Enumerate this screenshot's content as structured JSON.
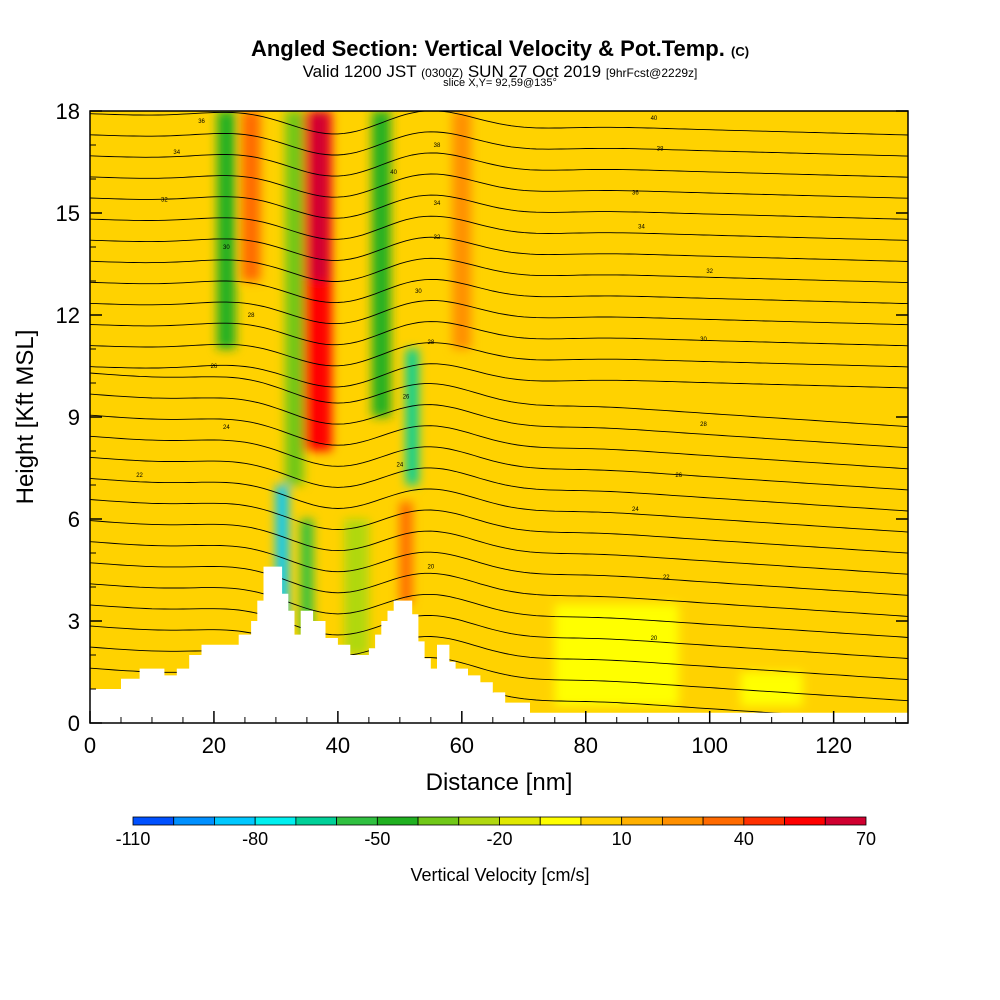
{
  "header": {
    "title_main": "Angled Section: Vertical Velocity & Pot.Temp.",
    "title_unit": "(C)",
    "valid_a": "Valid 1200 JST",
    "valid_z": "(0300Z)",
    "valid_b": "SUN 27 Oct 2019",
    "forecast": "[9hrFcst@2229z]",
    "slice": "slice X,Y= 92,59@135°"
  },
  "chart_data": {
    "type": "heatmap",
    "xlabel": "Distance [nm]",
    "ylabel": "Height [Kft MSL]",
    "xlim": [
      0,
      132
    ],
    "ylim": [
      0,
      18
    ],
    "xticks": [
      0,
      20,
      40,
      60,
      80,
      100,
      120
    ],
    "yticks": [
      0,
      3,
      6,
      9,
      12,
      15,
      18
    ],
    "grid": false,
    "colorbar": {
      "label": "Vertical Velocity [cm/s]",
      "min": -110,
      "max": 70,
      "step": 10,
      "tick_values": [
        -110,
        -80,
        -50,
        -20,
        10,
        40,
        70
      ],
      "colors": [
        "#0000ff",
        "#0050ff",
        "#0090ff",
        "#00c8ff",
        "#00f0f0",
        "#00d098",
        "#30c040",
        "#20b020",
        "#70c818",
        "#b0d810",
        "#e0e800",
        "#ffff00",
        "#ffd200",
        "#ffb000",
        "#ff9000",
        "#ff6a00",
        "#ff3000",
        "#ff0000",
        "#d00030",
        "#a00050",
        "#6a0080"
      ]
    },
    "velocity_cells": [
      {
        "x": 36,
        "w": 6,
        "z0": 8,
        "z1": 18,
        "v": 55
      },
      {
        "x": 37,
        "w": 3,
        "z0": 13,
        "z1": 18,
        "v": 65
      },
      {
        "x": 33,
        "w": 3,
        "z0": 7,
        "z1": 18,
        "v": -35
      },
      {
        "x": 31,
        "w": 2,
        "z0": 3,
        "z1": 7,
        "v": -85
      },
      {
        "x": 35,
        "w": 2,
        "z0": 2.5,
        "z1": 6,
        "v": -55
      },
      {
        "x": 22,
        "w": 3,
        "z0": 11,
        "z1": 18,
        "v": -45
      },
      {
        "x": 26,
        "w": 3,
        "z0": 13,
        "z1": 18,
        "v": 35
      },
      {
        "x": 47,
        "w": 3,
        "z0": 9,
        "z1": 18,
        "v": -40
      },
      {
        "x": 52,
        "w": 2,
        "z0": 7,
        "z1": 11,
        "v": -60
      },
      {
        "x": 51,
        "w": 2,
        "z0": 3.5,
        "z1": 6.5,
        "v": 35
      },
      {
        "x": 60,
        "w": 3,
        "z0": 11,
        "z1": 18,
        "v": 25
      },
      {
        "x": 43,
        "w": 4,
        "z0": 2,
        "z1": 6,
        "v": -20
      },
      {
        "x": 85,
        "w": 20,
        "z0": 0.5,
        "z1": 3.5,
        "v": -5
      },
      {
        "x": 110,
        "w": 10,
        "z0": 0.5,
        "z1": 1.5,
        "v": -5
      }
    ],
    "theta_labels": [
      {
        "x": 18,
        "z": 17.7,
        "t": "36"
      },
      {
        "x": 14,
        "z": 16.8,
        "t": "34"
      },
      {
        "x": 12,
        "z": 15.4,
        "t": "32"
      },
      {
        "x": 22,
        "z": 14.0,
        "t": "30"
      },
      {
        "x": 26,
        "z": 12.0,
        "t": "28"
      },
      {
        "x": 20,
        "z": 10.5,
        "t": "26"
      },
      {
        "x": 22,
        "z": 8.7,
        "t": "24"
      },
      {
        "x": 8,
        "z": 7.3,
        "t": "22"
      },
      {
        "x": 56,
        "z": 17.0,
        "t": "38"
      },
      {
        "x": 49,
        "z": 16.2,
        "t": "40"
      },
      {
        "x": 56,
        "z": 15.3,
        "t": "34"
      },
      {
        "x": 56,
        "z": 14.3,
        "t": "32"
      },
      {
        "x": 53,
        "z": 12.7,
        "t": "30"
      },
      {
        "x": 55,
        "z": 11.2,
        "t": "28"
      },
      {
        "x": 51,
        "z": 9.6,
        "t": "26"
      },
      {
        "x": 50,
        "z": 7.6,
        "t": "24"
      },
      {
        "x": 55,
        "z": 4.6,
        "t": "20"
      },
      {
        "x": 91,
        "z": 17.8,
        "t": "40"
      },
      {
        "x": 92,
        "z": 16.9,
        "t": "38"
      },
      {
        "x": 88,
        "z": 15.6,
        "t": "36"
      },
      {
        "x": 89,
        "z": 14.6,
        "t": "34"
      },
      {
        "x": 100,
        "z": 13.3,
        "t": "32"
      },
      {
        "x": 99,
        "z": 11.3,
        "t": "30"
      },
      {
        "x": 99,
        "z": 8.8,
        "t": "28"
      },
      {
        "x": 95,
        "z": 7.3,
        "t": "26"
      },
      {
        "x": 88,
        "z": 6.3,
        "t": "24"
      },
      {
        "x": 93,
        "z": 4.3,
        "t": "22"
      },
      {
        "x": 91,
        "z": 2.5,
        "t": "20"
      }
    ],
    "terrain": [
      [
        0,
        1
      ],
      [
        5,
        1
      ],
      [
        5,
        1.3
      ],
      [
        8,
        1.3
      ],
      [
        8,
        1.6
      ],
      [
        12,
        1.6
      ],
      [
        12,
        1.4
      ],
      [
        14,
        1.4
      ],
      [
        14,
        1.6
      ],
      [
        16,
        1.6
      ],
      [
        16,
        2
      ],
      [
        18,
        2
      ],
      [
        18,
        2.3
      ],
      [
        24,
        2.3
      ],
      [
        24,
        2.6
      ],
      [
        26,
        2.6
      ],
      [
        26,
        3
      ],
      [
        27,
        3
      ],
      [
        27,
        3.6
      ],
      [
        28,
        3.6
      ],
      [
        28,
        4.6
      ],
      [
        31,
        4.6
      ],
      [
        31,
        3.8
      ],
      [
        32,
        3.8
      ],
      [
        32,
        3.3
      ],
      [
        33,
        3.3
      ],
      [
        33,
        2.6
      ],
      [
        34,
        2.6
      ],
      [
        34,
        3.3
      ],
      [
        36,
        3.3
      ],
      [
        36,
        3.0
      ],
      [
        38,
        3.0
      ],
      [
        38,
        2.5
      ],
      [
        40,
        2.5
      ],
      [
        40,
        2.3
      ],
      [
        42,
        2.3
      ],
      [
        42,
        2.0
      ],
      [
        45,
        2.0
      ],
      [
        45,
        2.2
      ],
      [
        46,
        2.2
      ],
      [
        46,
        2.6
      ],
      [
        47,
        2.6
      ],
      [
        47,
        3.0
      ],
      [
        48,
        3.0
      ],
      [
        48,
        3.3
      ],
      [
        49,
        3.3
      ],
      [
        49,
        3.6
      ],
      [
        52,
        3.6
      ],
      [
        52,
        3.2
      ],
      [
        53,
        3.2
      ],
      [
        53,
        2.4
      ],
      [
        54,
        2.4
      ],
      [
        54,
        1.9
      ],
      [
        55,
        1.9
      ],
      [
        55,
        1.6
      ],
      [
        56,
        1.6
      ],
      [
        56,
        2.3
      ],
      [
        58,
        2.3
      ],
      [
        58,
        1.8
      ],
      [
        59,
        1.8
      ],
      [
        59,
        1.6
      ],
      [
        61,
        1.6
      ],
      [
        61,
        1.4
      ],
      [
        63,
        1.4
      ],
      [
        63,
        1.2
      ],
      [
        65,
        1.2
      ],
      [
        65,
        0.9
      ],
      [
        67,
        0.9
      ],
      [
        67,
        0.6
      ],
      [
        71,
        0.6
      ],
      [
        71,
        0.3
      ],
      [
        132,
        0.3
      ]
    ]
  }
}
